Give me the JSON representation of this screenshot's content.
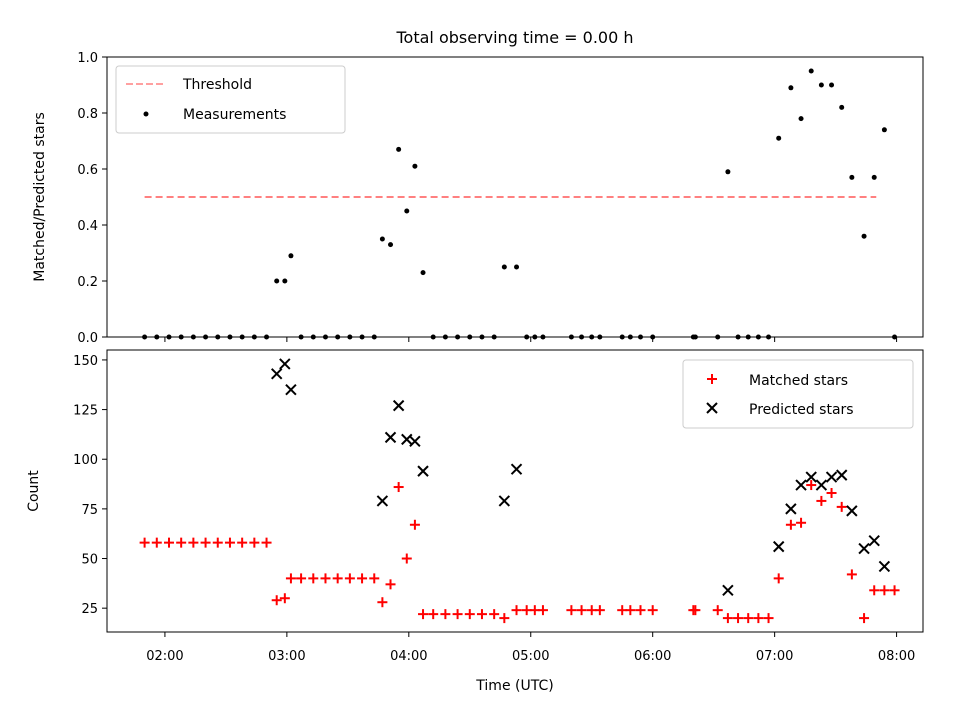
{
  "chart_data": [
    {
      "type": "scatter",
      "title": "Total observing time = 0.00 h",
      "xlabel": "",
      "ylabel": "Matched/Predicted stars",
      "ylim": [
        0,
        1
      ],
      "yticks": [
        "0.0",
        "0.2",
        "0.4",
        "0.6",
        "0.8",
        "1.0"
      ],
      "legend_position": "top-left",
      "threshold": {
        "name": "Threshold",
        "value": 0.5,
        "x_range": [
          "01:50",
          "07:50"
        ],
        "color": "#ff8080",
        "style": "dashed"
      },
      "series": [
        {
          "name": "Measurements",
          "color": "#000000",
          "marker": "dot",
          "points": [
            [
              "01:50",
              0
            ],
            [
              "01:56",
              0
            ],
            [
              "02:02",
              0
            ],
            [
              "02:08",
              0
            ],
            [
              "02:14",
              0
            ],
            [
              "02:20",
              0
            ],
            [
              "02:26",
              0
            ],
            [
              "02:32",
              0
            ],
            [
              "02:38",
              0
            ],
            [
              "02:44",
              0
            ],
            [
              "02:50",
              0
            ],
            [
              "02:55",
              0.2
            ],
            [
              "02:59",
              0.2
            ],
            [
              "03:02",
              0.29
            ],
            [
              "03:07",
              0
            ],
            [
              "03:13",
              0
            ],
            [
              "03:19",
              0
            ],
            [
              "03:25",
              0
            ],
            [
              "03:31",
              0
            ],
            [
              "03:37",
              0
            ],
            [
              "03:43",
              0
            ],
            [
              "03:47",
              0.35
            ],
            [
              "03:51",
              0.33
            ],
            [
              "03:55",
              0.67
            ],
            [
              "03:59",
              0.45
            ],
            [
              "04:03",
              0.61
            ],
            [
              "04:07",
              0.23
            ],
            [
              "04:12",
              0
            ],
            [
              "04:18",
              0
            ],
            [
              "04:24",
              0
            ],
            [
              "04:30",
              0
            ],
            [
              "04:36",
              0
            ],
            [
              "04:42",
              0
            ],
            [
              "04:47",
              0.25
            ],
            [
              "04:53",
              0.25
            ],
            [
              "04:58",
              0
            ],
            [
              "05:02",
              0
            ],
            [
              "05:06",
              0
            ],
            [
              "05:20",
              0
            ],
            [
              "05:25",
              0
            ],
            [
              "05:30",
              0
            ],
            [
              "05:34",
              0
            ],
            [
              "05:45",
              0
            ],
            [
              "05:49",
              0
            ],
            [
              "05:54",
              0
            ],
            [
              "06:00",
              0
            ],
            [
              "06:20",
              0
            ],
            [
              "06:21",
              0
            ],
            [
              "06:32",
              0
            ],
            [
              "06:42",
              0
            ],
            [
              "06:47",
              0
            ],
            [
              "06:52",
              0
            ],
            [
              "06:57",
              0
            ],
            [
              "06:37",
              0.59
            ],
            [
              "07:02",
              0.71
            ],
            [
              "07:08",
              0.89
            ],
            [
              "07:13",
              0.78
            ],
            [
              "07:18",
              0.95
            ],
            [
              "07:23",
              0.9
            ],
            [
              "07:28",
              0.9
            ],
            [
              "07:33",
              0.82
            ],
            [
              "07:38",
              0.57
            ],
            [
              "07:44",
              0.36
            ],
            [
              "07:49",
              0.57
            ],
            [
              "07:54",
              0.74
            ],
            [
              "07:59",
              0
            ]
          ]
        }
      ]
    },
    {
      "type": "scatter",
      "title": "",
      "xlabel": "Time (UTC)",
      "ylabel": "Count",
      "ylim": [
        13,
        155
      ],
      "yticks": [
        "25",
        "50",
        "75",
        "100",
        "125",
        "150"
      ],
      "xticks": [
        "02:00",
        "03:00",
        "04:00",
        "05:00",
        "06:00",
        "07:00",
        "08:00"
      ],
      "legend_position": "top-right",
      "series": [
        {
          "name": "Matched stars",
          "color": "#ff0000",
          "marker": "plus",
          "points": [
            [
              "01:50",
              58
            ],
            [
              "01:56",
              58
            ],
            [
              "02:02",
              58
            ],
            [
              "02:08",
              58
            ],
            [
              "02:14",
              58
            ],
            [
              "02:20",
              58
            ],
            [
              "02:26",
              58
            ],
            [
              "02:32",
              58
            ],
            [
              "02:38",
              58
            ],
            [
              "02:44",
              58
            ],
            [
              "02:50",
              58
            ],
            [
              "02:55",
              29
            ],
            [
              "02:59",
              30
            ],
            [
              "03:02",
              40
            ],
            [
              "03:07",
              40
            ],
            [
              "03:13",
              40
            ],
            [
              "03:19",
              40
            ],
            [
              "03:25",
              40
            ],
            [
              "03:31",
              40
            ],
            [
              "03:37",
              40
            ],
            [
              "03:43",
              40
            ],
            [
              "03:47",
              28
            ],
            [
              "03:51",
              37
            ],
            [
              "03:55",
              86
            ],
            [
              "03:59",
              50
            ],
            [
              "04:03",
              67
            ],
            [
              "04:07",
              22
            ],
            [
              "04:12",
              22
            ],
            [
              "04:18",
              22
            ],
            [
              "04:24",
              22
            ],
            [
              "04:30",
              22
            ],
            [
              "04:36",
              22
            ],
            [
              "04:42",
              22
            ],
            [
              "04:47",
              20
            ],
            [
              "04:53",
              24
            ],
            [
              "04:58",
              24
            ],
            [
              "05:02",
              24
            ],
            [
              "05:06",
              24
            ],
            [
              "05:20",
              24
            ],
            [
              "05:25",
              24
            ],
            [
              "05:30",
              24
            ],
            [
              "05:34",
              24
            ],
            [
              "05:45",
              24
            ],
            [
              "05:49",
              24
            ],
            [
              "05:54",
              24
            ],
            [
              "06:00",
              24
            ],
            [
              "06:20",
              24
            ],
            [
              "06:21",
              24
            ],
            [
              "06:32",
              24
            ],
            [
              "06:37",
              20
            ],
            [
              "06:42",
              20
            ],
            [
              "06:47",
              20
            ],
            [
              "06:52",
              20
            ],
            [
              "06:57",
              20
            ],
            [
              "07:02",
              40
            ],
            [
              "07:08",
              67
            ],
            [
              "07:13",
              68
            ],
            [
              "07:18",
              87
            ],
            [
              "07:23",
              79
            ],
            [
              "07:28",
              83
            ],
            [
              "07:33",
              76
            ],
            [
              "07:38",
              42
            ],
            [
              "07:44",
              20
            ],
            [
              "07:49",
              34
            ],
            [
              "07:54",
              34
            ],
            [
              "07:59",
              34
            ]
          ]
        },
        {
          "name": "Predicted stars",
          "color": "#000000",
          "marker": "x",
          "points": [
            [
              "02:55",
              143
            ],
            [
              "02:59",
              148
            ],
            [
              "03:02",
              135
            ],
            [
              "03:47",
              79
            ],
            [
              "03:51",
              111
            ],
            [
              "03:55",
              127
            ],
            [
              "03:59",
              110
            ],
            [
              "04:03",
              109
            ],
            [
              "04:07",
              94
            ],
            [
              "04:47",
              79
            ],
            [
              "04:53",
              95
            ],
            [
              "06:37",
              34
            ],
            [
              "07:02",
              56
            ],
            [
              "07:08",
              75
            ],
            [
              "07:13",
              87
            ],
            [
              "07:18",
              91
            ],
            [
              "07:23",
              87
            ],
            [
              "07:28",
              91
            ],
            [
              "07:33",
              92
            ],
            [
              "07:38",
              74
            ],
            [
              "07:44",
              55
            ],
            [
              "07:49",
              59
            ],
            [
              "07:54",
              46
            ]
          ]
        }
      ]
    }
  ]
}
